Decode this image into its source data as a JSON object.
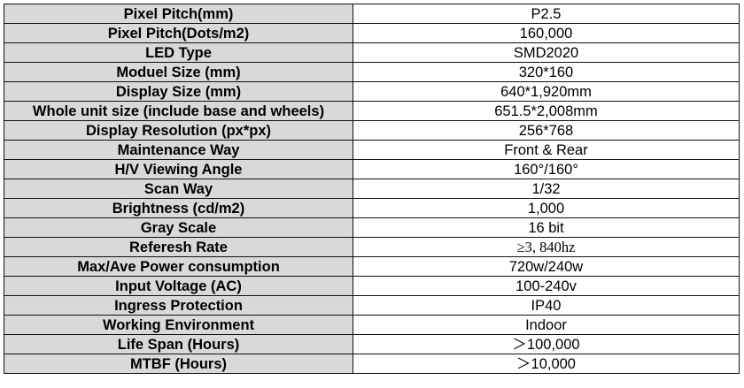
{
  "spec_table": {
    "rows": [
      {
        "label": "Pixel Pitch(mm)",
        "value": "P2.5"
      },
      {
        "label": "Pixel Pitch(Dots/m2)",
        "value": "160,000"
      },
      {
        "label": "LED Type",
        "value": "SMD2020"
      },
      {
        "label": "Moduel Size (mm)",
        "value": "320*160"
      },
      {
        "label": "Display Size (mm)",
        "value": "640*1,920mm"
      },
      {
        "label": "Whole unit size (include base and wheels)",
        "value": "651.5*2,008mm"
      },
      {
        "label": "Display Resolution (px*px)",
        "value": "256*768"
      },
      {
        "label": "Maintenance Way",
        "value": "Front & Rear"
      },
      {
        "label": "H/V Viewing Angle",
        "value": "160°/160°"
      },
      {
        "label": "Scan Way",
        "value": "1/32"
      },
      {
        "label": "Brightness (cd/m2)",
        "value": "1,000"
      },
      {
        "label": "Gray Scale",
        "value": "16 bit"
      },
      {
        "label": "Referesh Rate",
        "value": "≥3, 840hz"
      },
      {
        "label": "Max/Ave Power consumption",
        "value": "720w/240w"
      },
      {
        "label": "Input Voltage (AC)",
        "value": "100-240v"
      },
      {
        "label": "Ingress Protection",
        "value": "IP40"
      },
      {
        "label": "Working Environment",
        "value": "Indoor"
      },
      {
        "label": "Life Span (Hours)",
        "value": "＞100,000"
      },
      {
        "label": "MTBF (Hours)",
        "value": "＞10,000"
      }
    ],
    "header_fill": "#d9d9d9"
  }
}
